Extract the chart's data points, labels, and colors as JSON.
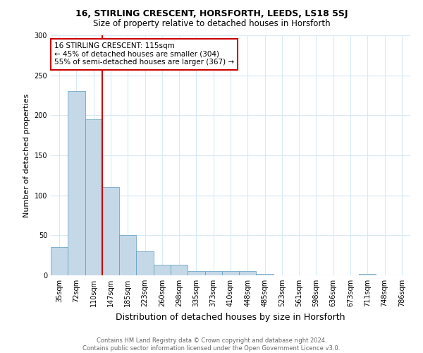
{
  "title1": "16, STIRLING CRESCENT, HORSFORTH, LEEDS, LS18 5SJ",
  "title2": "Size of property relative to detached houses in Horsforth",
  "xlabel": "Distribution of detached houses by size in Horsforth",
  "ylabel": "Number of detached properties",
  "categories": [
    "35sqm",
    "72sqm",
    "110sqm",
    "147sqm",
    "185sqm",
    "223sqm",
    "260sqm",
    "298sqm",
    "335sqm",
    "373sqm",
    "410sqm",
    "448sqm",
    "485sqm",
    "523sqm",
    "561sqm",
    "598sqm",
    "636sqm",
    "673sqm",
    "711sqm",
    "748sqm",
    "786sqm"
  ],
  "values": [
    35,
    230,
    195,
    110,
    50,
    30,
    13,
    13,
    5,
    5,
    5,
    5,
    2,
    0,
    0,
    0,
    0,
    0,
    2,
    0,
    0
  ],
  "bar_color": "#c5d8e8",
  "bar_edge_color": "#5a9bbf",
  "highlight_line_index": 2,
  "highlight_line_color": "#cc0000",
  "annotation_text": "16 STIRLING CRESCENT: 115sqm\n← 45% of detached houses are smaller (304)\n55% of semi-detached houses are larger (367) →",
  "annotation_box_color": "white",
  "annotation_box_edge_color": "#cc0000",
  "ylim": [
    0,
    300
  ],
  "yticks": [
    0,
    50,
    100,
    150,
    200,
    250,
    300
  ],
  "footer": "Contains HM Land Registry data © Crown copyright and database right 2024.\nContains public sector information licensed under the Open Government Licence v3.0.",
  "bg_color": "white",
  "grid_color": "#d8eaf5",
  "title1_fontsize": 9,
  "title2_fontsize": 8.5,
  "ylabel_fontsize": 8,
  "xlabel_fontsize": 9,
  "tick_fontsize": 7,
  "footer_fontsize": 6,
  "annotation_fontsize": 7.5
}
